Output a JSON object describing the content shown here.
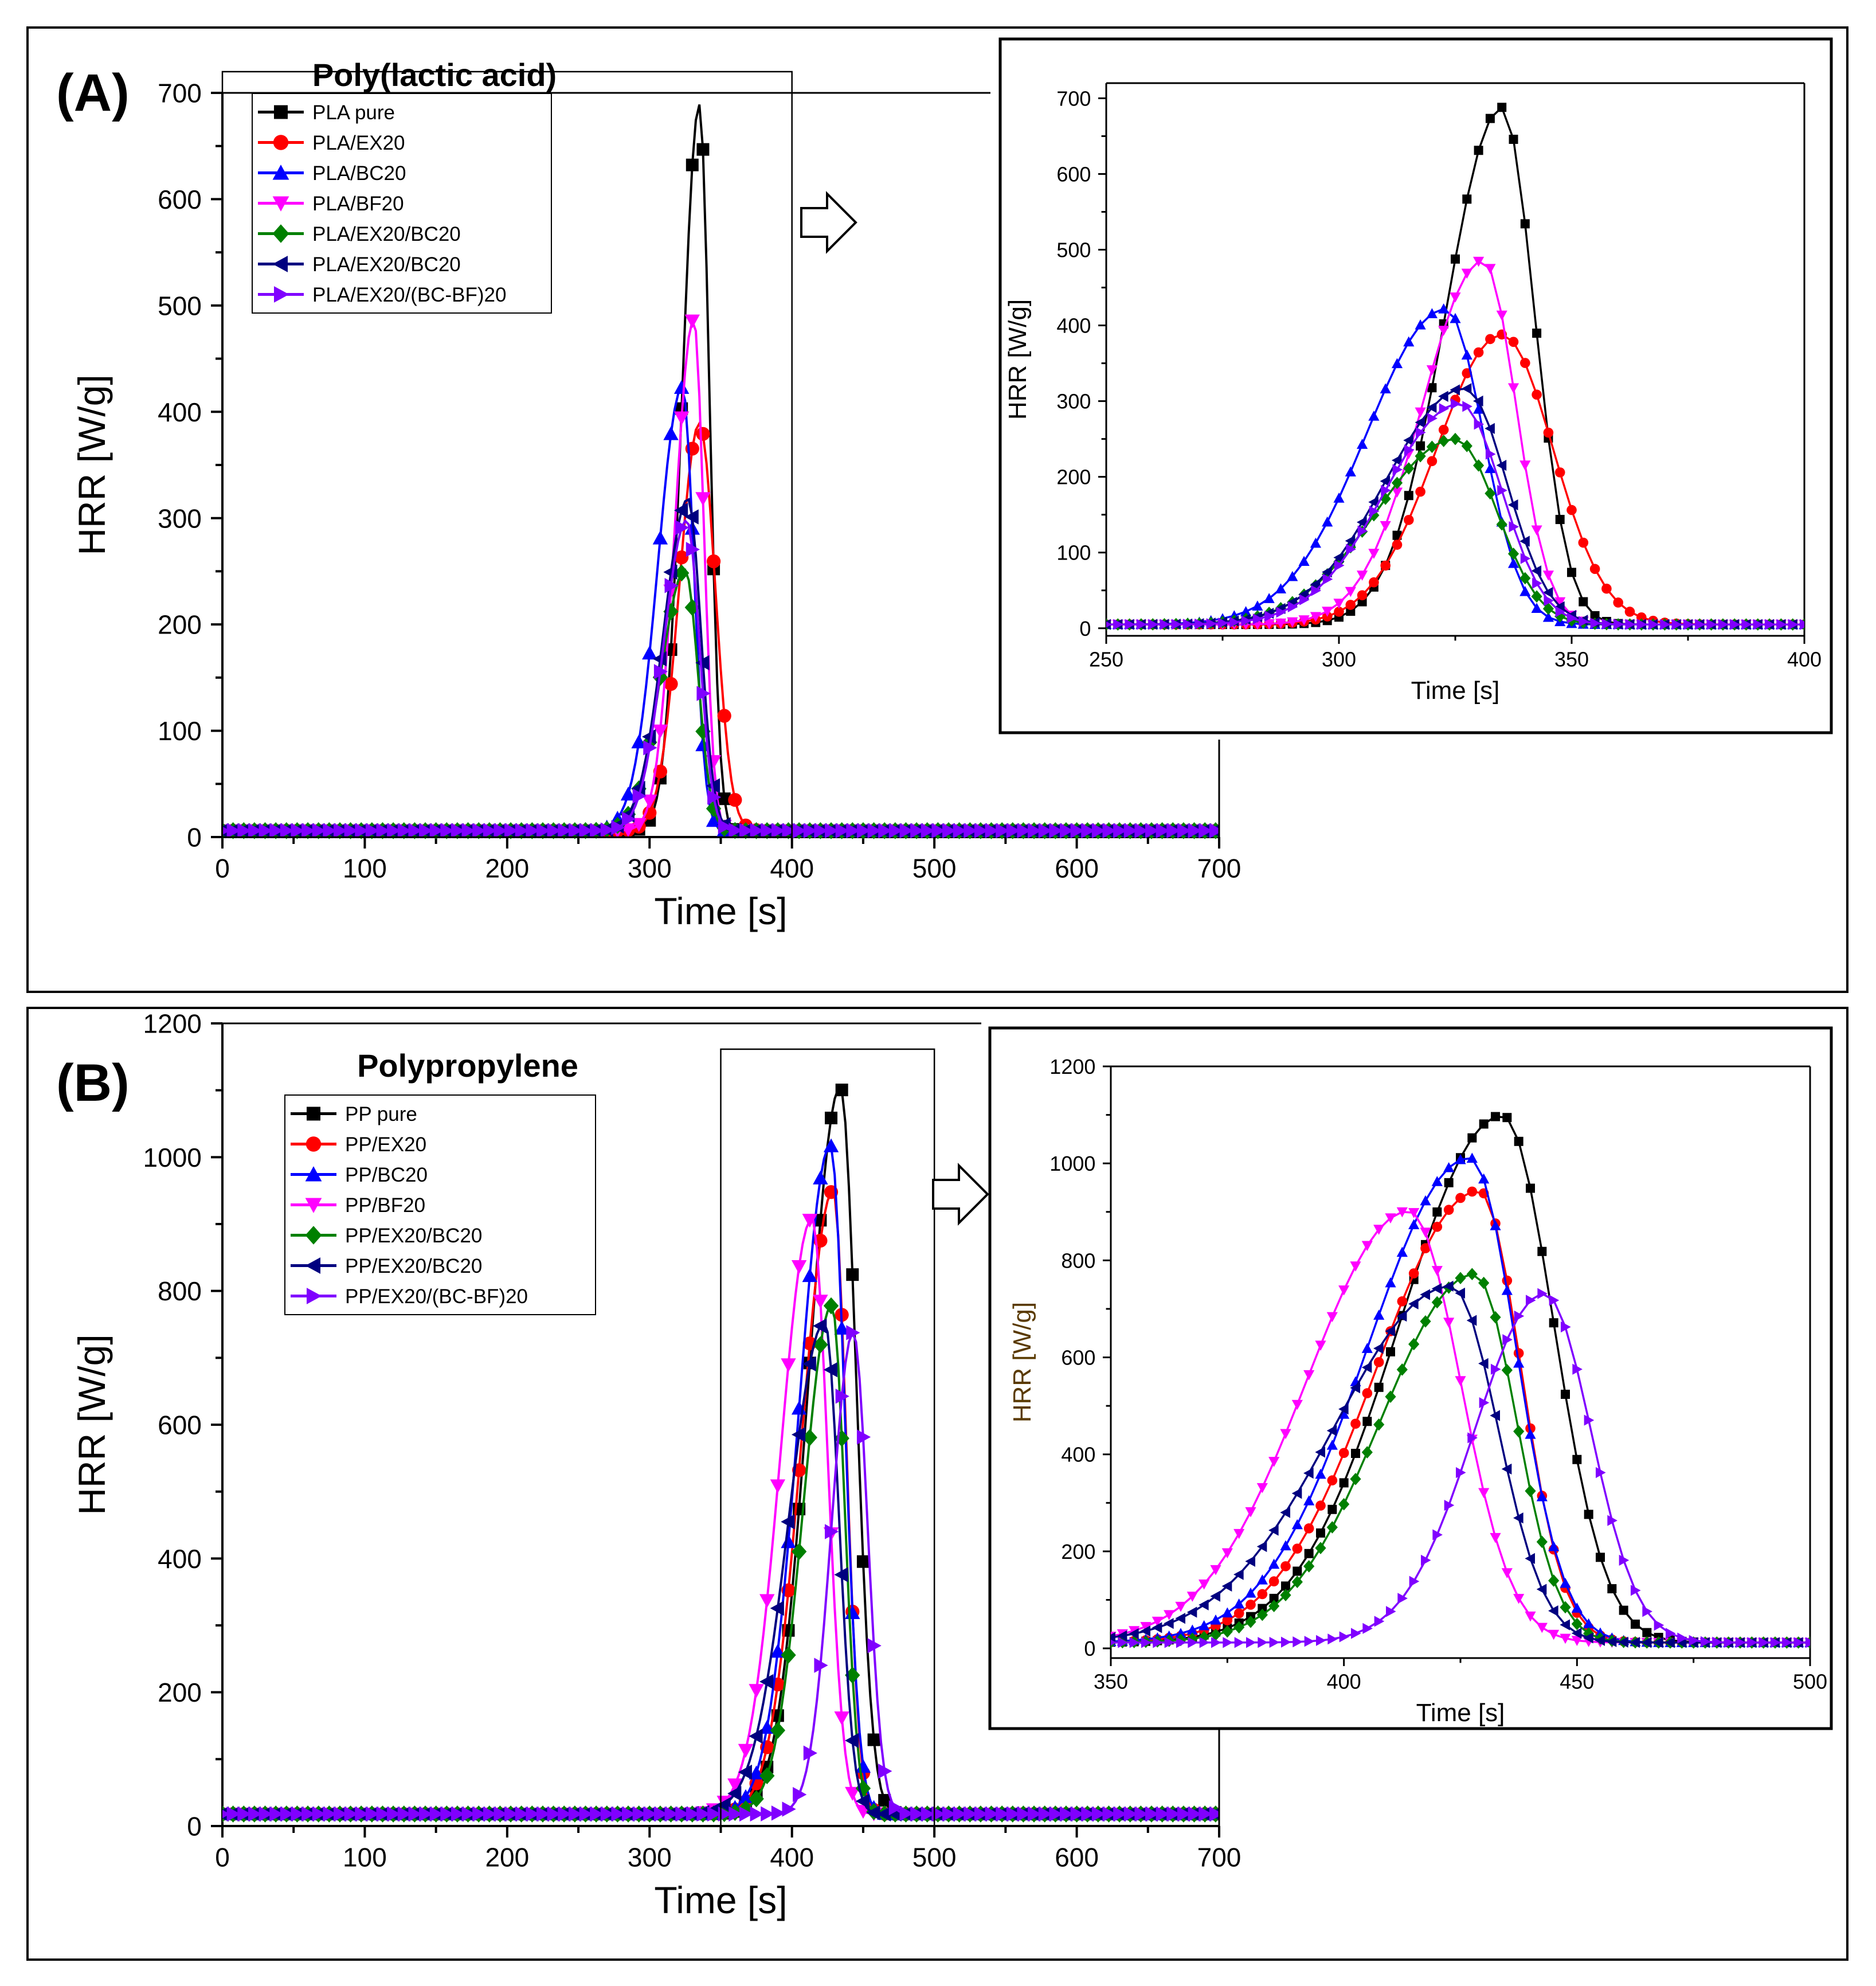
{
  "colors": {
    "black": "#000000",
    "red": "#ff0000",
    "blue": "#0000ff",
    "magenta": "#ff00ff",
    "green": "#008000",
    "navy": "#000080",
    "violet": "#8000ff"
  },
  "chart_data": [
    {
      "id": "A",
      "type": "line",
      "panel_label": "(A)",
      "title": "Poly(lactic acid)",
      "xlabel": "Time [s]",
      "ylabel": "HRR [W/g]",
      "xlim": [
        0,
        700
      ],
      "ylim": [
        0,
        700
      ],
      "xticks": [
        0,
        100,
        200,
        300,
        400,
        500,
        600,
        700
      ],
      "yticks": [
        0,
        100,
        200,
        300,
        400,
        500,
        600,
        700
      ],
      "zoom_window": [
        0,
        400
      ],
      "series": [
        {
          "name": "PLA pure",
          "marker": "square",
          "color": "black",
          "peak_time": 335,
          "peak": 683,
          "sigma_left": 12,
          "sigma_right": 7
        },
        {
          "name": "PLA/EX20",
          "marker": "circle",
          "color": "red",
          "peak_time": 335,
          "peak": 383,
          "sigma_left": 14,
          "sigma_right": 11
        },
        {
          "name": "PLA/BC20",
          "marker": "triangle-up",
          "color": "blue",
          "peak_time": 323,
          "peak": 417,
          "sigma_left": 17,
          "sigma_right": 8
        },
        {
          "name": "PLA/BF20",
          "marker": "triangle-down",
          "color": "magenta",
          "peak_time": 331,
          "peak": 481,
          "sigma_left": 13,
          "sigma_right": 7
        },
        {
          "name": "PLA/EX20/BC20",
          "marker": "diamond",
          "color": "green",
          "peak_time": 325,
          "peak": 245,
          "sigma_left": 17,
          "sigma_right": 9
        },
        {
          "name": "PLA/EX20/BC20",
          "marker": "triangle-left",
          "color": "navy",
          "peak_time": 327,
          "peak": 312,
          "sigma_left": 17,
          "sigma_right": 9
        },
        {
          "name": "PLA/EX20/(BC-BF)20",
          "marker": "triangle-right",
          "color": "violet",
          "peak_time": 326,
          "peak": 292,
          "sigma_left": 16,
          "sigma_right": 9
        }
      ],
      "inset": {
        "xlabel": "Time [s]",
        "ylabel": "HRR [W/g]",
        "xlim": [
          250,
          400
        ],
        "ylim": [
          -10,
          720
        ],
        "xticks": [
          250,
          300,
          350,
          400
        ],
        "yticks": [
          0,
          100,
          200,
          300,
          400,
          500,
          600,
          700
        ]
      }
    },
    {
      "id": "B",
      "type": "line",
      "panel_label": "(B)",
      "title": "Polypropylene",
      "xlabel": "Time [s]",
      "ylabel": "HRR [W/g]",
      "xlim": [
        0,
        700
      ],
      "ylim": [
        0,
        1200
      ],
      "xticks": [
        0,
        100,
        200,
        300,
        400,
        500,
        600,
        700
      ],
      "yticks": [
        0,
        200,
        400,
        600,
        800,
        1000,
        1200
      ],
      "zoom_window": [
        350,
        500
      ],
      "series": [
        {
          "name": "PP pure",
          "marker": "square",
          "color": "black",
          "peak_time": 434,
          "peak": 1087,
          "sigma_left": 22,
          "sigma_right": 11
        },
        {
          "name": "PP/EX20",
          "marker": "circle",
          "color": "red",
          "peak_time": 429,
          "peak": 932,
          "sigma_left": 22,
          "sigma_right": 9
        },
        {
          "name": "PP/BC20",
          "marker": "triangle-up",
          "color": "blue",
          "peak_time": 427,
          "peak": 1000,
          "sigma_left": 22,
          "sigma_right": 10
        },
        {
          "name": "PP/BF20",
          "marker": "triangle-down",
          "color": "magenta",
          "peak_time": 414,
          "peak": 890,
          "sigma_left": 22,
          "sigma_right": 11
        },
        {
          "name": "PP/EX20/BC20",
          "marker": "diamond",
          "color": "green",
          "peak_time": 428,
          "peak": 760,
          "sigma_left": 20,
          "sigma_right": 9
        },
        {
          "name": "PP/EX20/BC20",
          "marker": "triangle-left",
          "color": "navy",
          "peak_time": 423,
          "peak": 735,
          "sigma_left": 25,
          "sigma_right": 10
        },
        {
          "name": "PP/EX20/(BC-BF)20",
          "marker": "triangle-right",
          "color": "violet",
          "peak_time": 443,
          "peak": 720,
          "sigma_left": 15,
          "sigma_right": 10
        }
      ],
      "inset": {
        "xlabel": "Time [s]",
        "ylabel": "HRR [W/g]",
        "xlim": [
          350,
          500
        ],
        "ylim": [
          -20,
          1200
        ],
        "xticks": [
          350,
          400,
          450,
          500
        ],
        "yticks": [
          0,
          200,
          400,
          600,
          800,
          1000,
          1200
        ]
      }
    }
  ]
}
